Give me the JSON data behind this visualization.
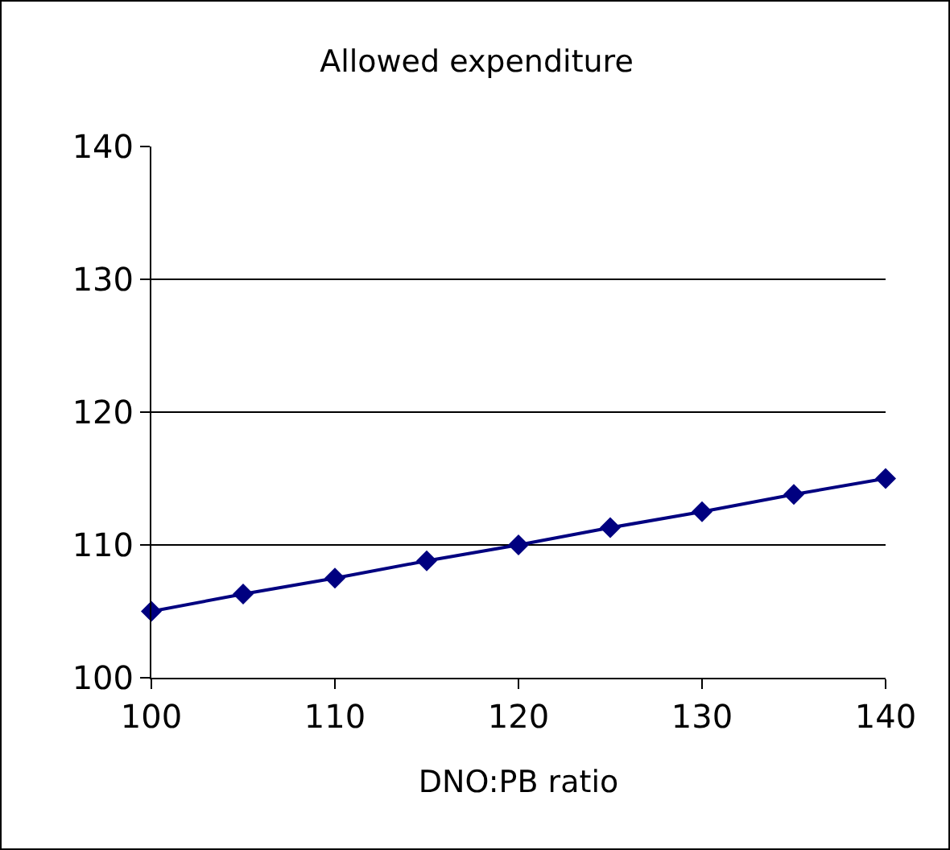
{
  "chart_data": {
    "type": "line",
    "title": "Allowed expenditure",
    "xlabel": "DNO:PB ratio",
    "x": [
      100,
      105,
      110,
      115,
      120,
      125,
      130,
      135,
      140
    ],
    "series": [
      {
        "color": "#000080",
        "values": [
          105,
          106.3,
          107.5,
          108.8,
          110,
          111.3,
          112.5,
          113.8,
          115
        ]
      }
    ],
    "xlim": [
      100,
      140
    ],
    "xticks": [
      100,
      110,
      120,
      130,
      140
    ],
    "ylim": [
      100,
      140
    ],
    "yticks": [
      100,
      110,
      120,
      130,
      140
    ],
    "grid": "y",
    "legend": false,
    "marker": "diamond",
    "line_style": "solid"
  }
}
